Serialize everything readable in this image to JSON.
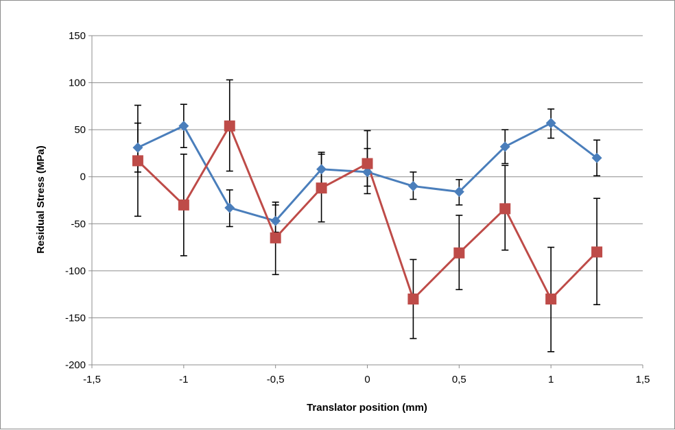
{
  "chart_data": {
    "type": "line",
    "title": "",
    "xlabel": "Translator position (mm)",
    "ylabel": "Residual Stress (MPa)",
    "xlim": [
      -1.5,
      1.5
    ],
    "ylim": [
      -200,
      150
    ],
    "xticks": [
      -1.5,
      -1,
      -0.5,
      0,
      0.5,
      1,
      1.5
    ],
    "yticks": [
      -200,
      -150,
      -100,
      -50,
      0,
      50,
      100,
      150
    ],
    "decimal_separator": ",",
    "grid": "horizontal",
    "legend": "none",
    "x": [
      -1.25,
      -1,
      -0.75,
      -0.5,
      -0.25,
      0,
      0.25,
      0.5,
      0.75,
      1,
      1.25
    ],
    "series": [
      {
        "color": "#4a7ebb",
        "marker": "diamond",
        "values": [
          31,
          54,
          -33,
          -47,
          8,
          5,
          -10,
          -16,
          32,
          57,
          20
        ],
        "error_low": [
          5,
          31,
          -53,
          -59,
          -10,
          -18,
          -24,
          -30,
          14,
          41,
          1
        ],
        "error_high": [
          57,
          77,
          -14,
          -27,
          26,
          30,
          5,
          -3,
          50,
          72,
          39
        ]
      },
      {
        "color": "#be4b48",
        "marker": "square",
        "values": [
          17,
          -30,
          54,
          -65,
          -12,
          14,
          -130,
          -81,
          -34,
          -130,
          -80
        ],
        "error_low": [
          -42,
          -84,
          6,
          -104,
          -48,
          -10,
          -172,
          -120,
          -78,
          -186,
          -136
        ],
        "error_high": [
          76,
          24,
          103,
          -30,
          24,
          49,
          -88,
          -41,
          12,
          -75,
          -23
        ]
      }
    ]
  }
}
